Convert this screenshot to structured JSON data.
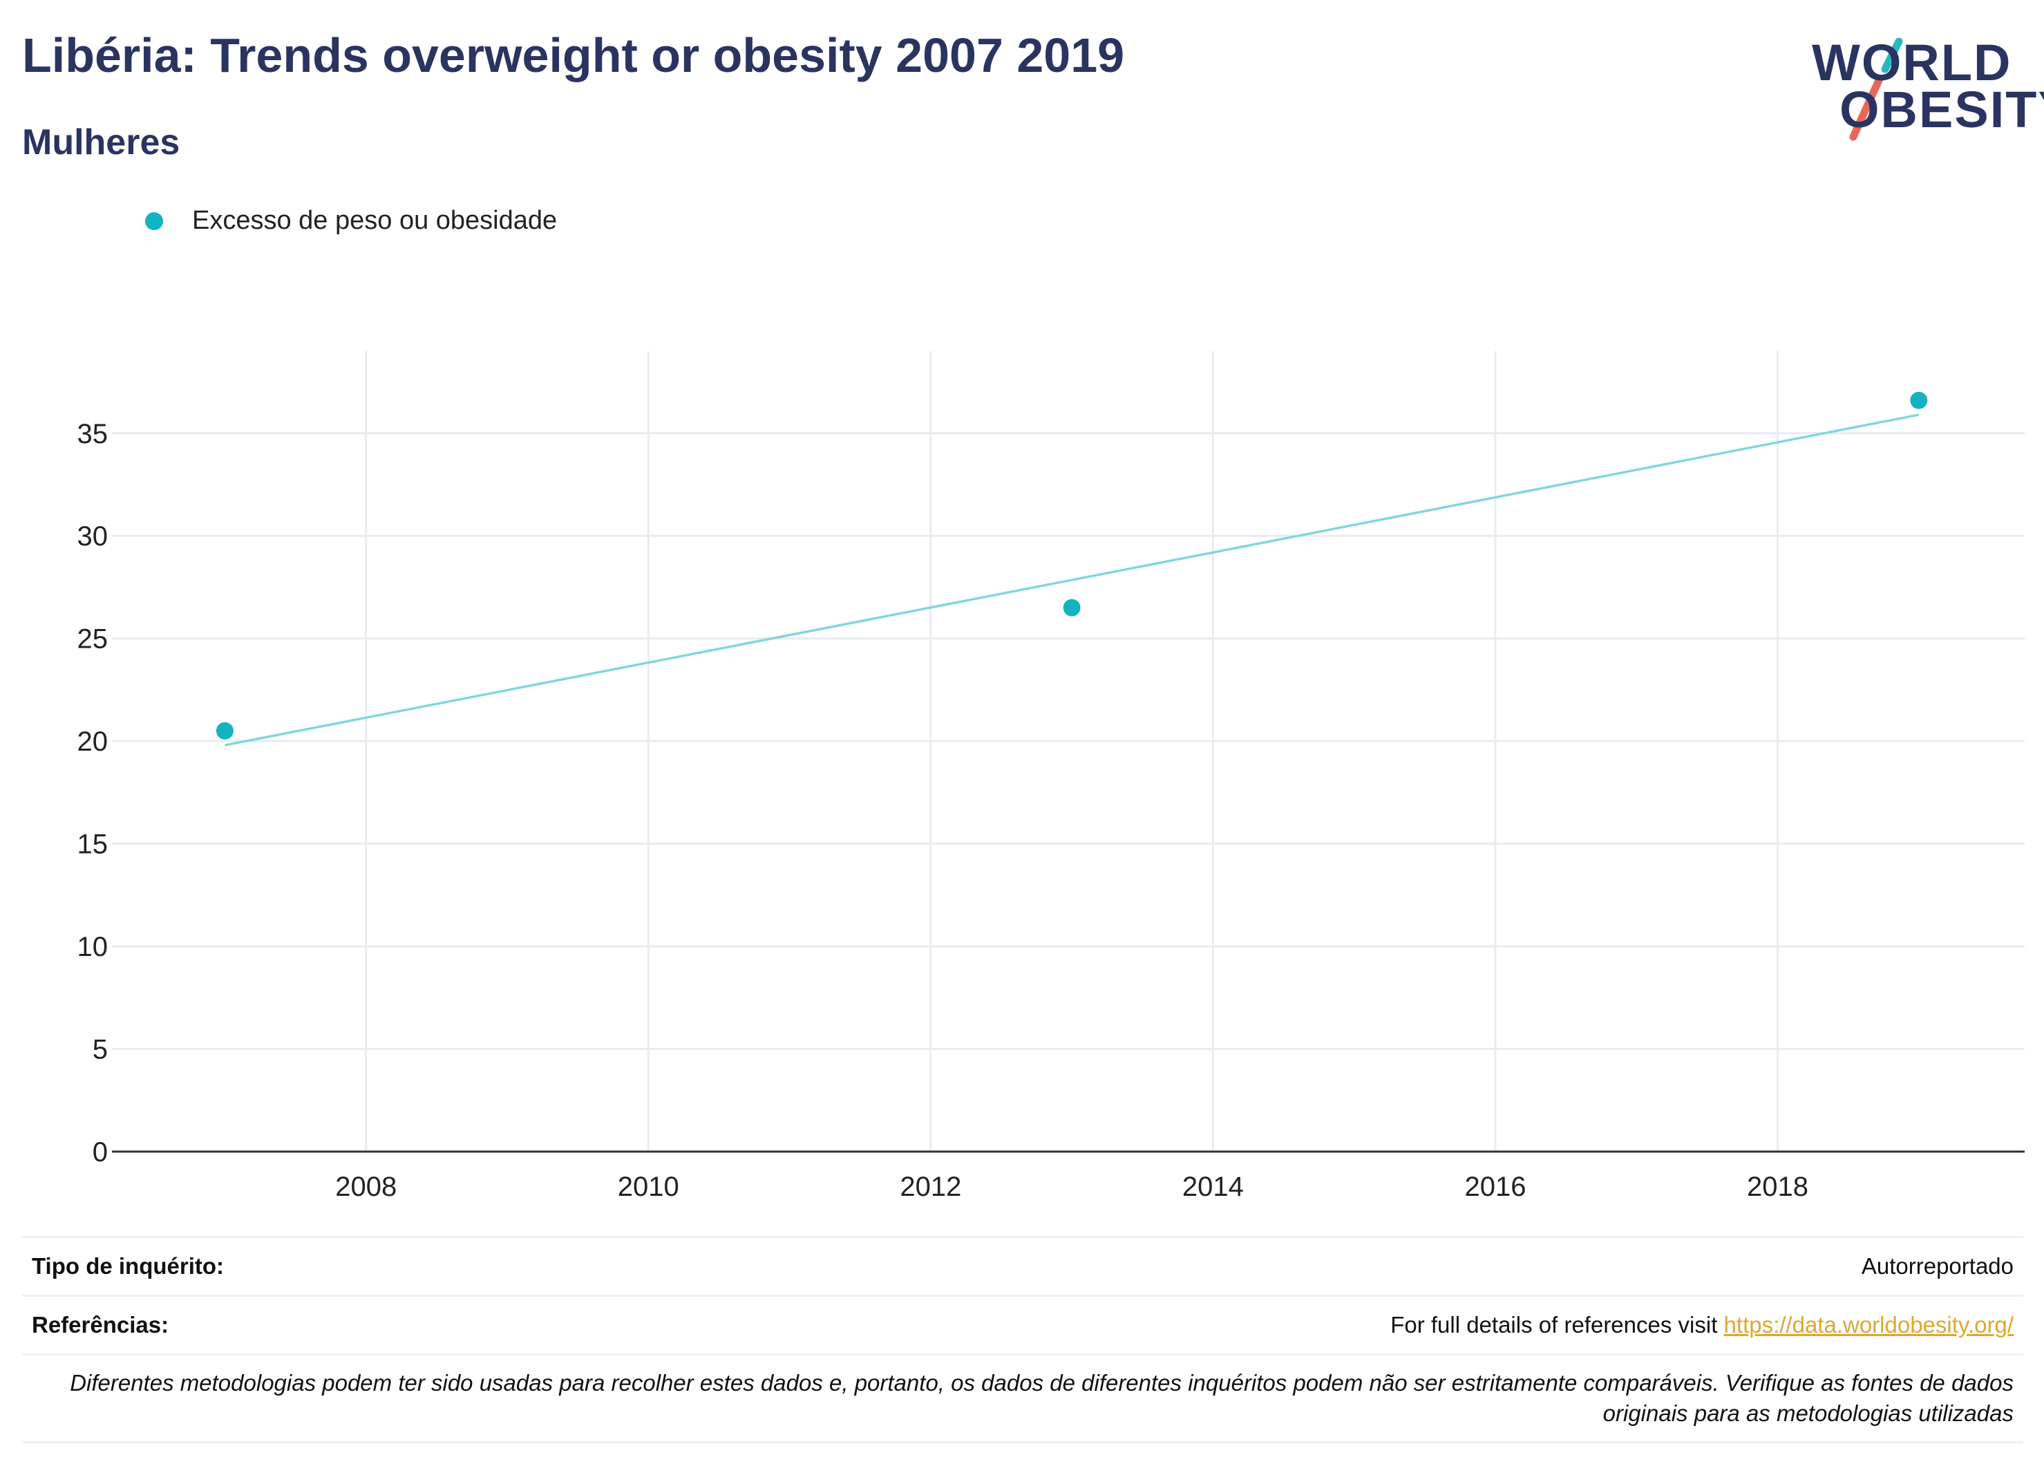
{
  "header": {
    "title": "Libéria: Trends overweight or obesity 2007 2019",
    "subtitle": "Mulheres"
  },
  "logo": {
    "line1": "WORLD",
    "line2": "OBESITY",
    "accent_teal": "#2bb6c4",
    "accent_red": "#e8675a"
  },
  "legend": {
    "label": "Excesso de peso ou obesidade",
    "color": "#14b3c2"
  },
  "chart_data": {
    "type": "scatter",
    "x": [
      2007,
      2013,
      2019
    ],
    "series": [
      {
        "name": "Excesso de peso ou obesidade",
        "values": [
          20.5,
          26.5,
          36.6
        ],
        "color": "#14b3c2"
      }
    ],
    "trendline": {
      "x": [
        2007,
        2019
      ],
      "y": [
        19.8,
        35.9
      ],
      "color": "#83d6dd"
    },
    "xlim": [
      2006.2,
      2019.75
    ],
    "ylim": [
      0,
      39
    ],
    "xticks": [
      2008,
      2010,
      2012,
      2014,
      2016,
      2018
    ],
    "yticks": [
      0,
      5,
      10,
      15,
      20,
      25,
      30,
      35
    ],
    "grid": true
  },
  "footer": {
    "survey_label": "Tipo de inquérito:",
    "survey_value": "Autorreportado",
    "refs_label": "Referências:",
    "refs_text": "For full details of references visit ",
    "refs_link": "https://data.worldobesity.org/",
    "note": "Diferentes metodologias podem ter sido usadas para recolher estes dados e, portanto, os dados de diferentes inquéritos podem não ser estritamente comparáveis. Verifique as fontes de dados originais para as metodologias utilizadas"
  }
}
